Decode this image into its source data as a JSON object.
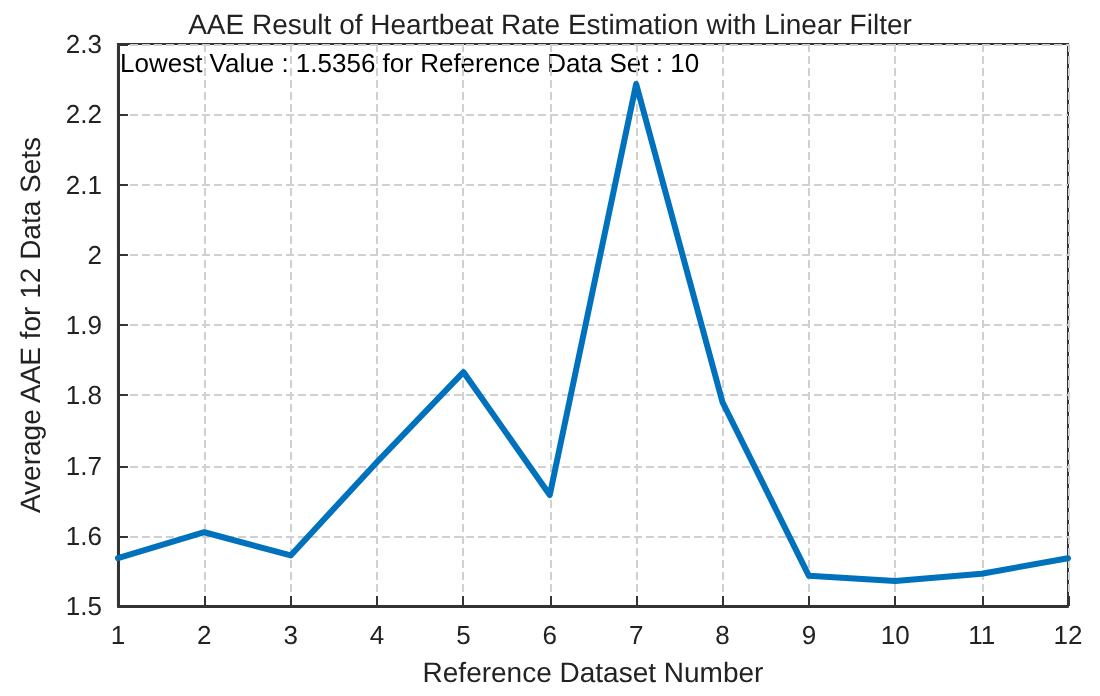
{
  "chart_data": {
    "type": "line",
    "title": "AAE Result of Heartbeat Rate Estimation with Linear Filter",
    "xlabel": "Reference Dataset Number",
    "ylabel": "Average AAE for 12 Data Sets",
    "annotations": [
      "Lowest Value : 1.5356 for Reference Data Set : 10"
    ],
    "x": [
      1,
      2,
      3,
      4,
      5,
      6,
      7,
      8,
      9,
      10,
      11,
      12
    ],
    "series": [
      {
        "color": "#0072bd",
        "values": [
          1.568,
          1.605,
          1.572,
          1.705,
          1.833,
          1.658,
          2.243,
          1.79,
          1.543,
          1.5356,
          1.546,
          1.568
        ]
      }
    ],
    "xlim": [
      1,
      12
    ],
    "xticks": [
      1,
      2,
      3,
      4,
      5,
      6,
      7,
      8,
      9,
      10,
      11,
      12
    ],
    "ylim": [
      1.5,
      2.3
    ],
    "yticks": [
      1.5,
      1.6,
      1.7,
      1.8,
      1.9,
      2,
      2.1,
      2.2,
      2.3
    ],
    "grid": true,
    "marker": "none",
    "line_style": "solid"
  }
}
